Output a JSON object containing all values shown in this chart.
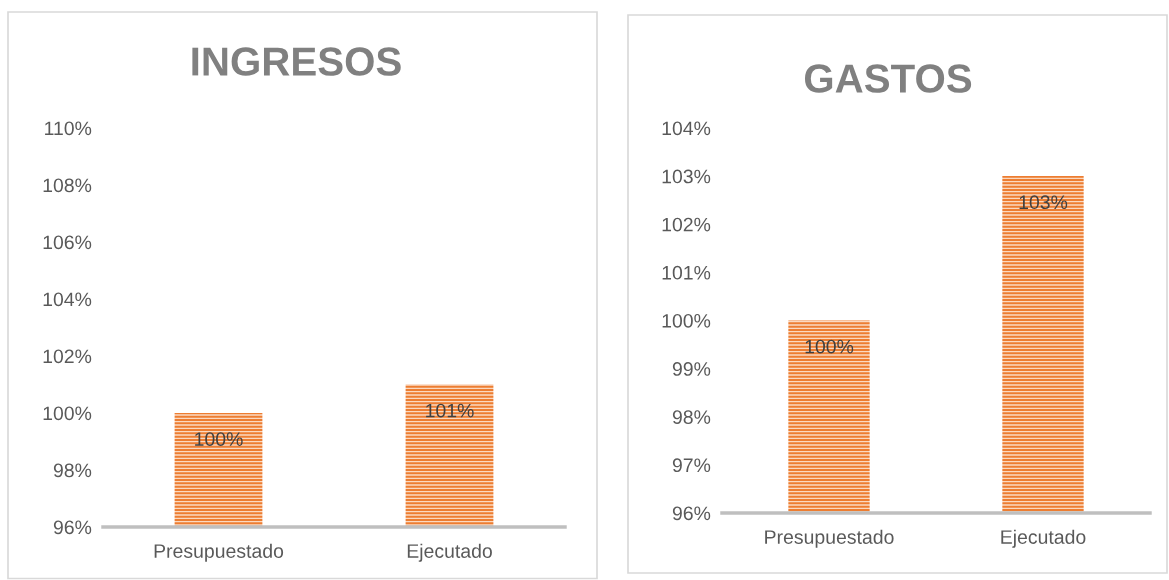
{
  "chart_data": [
    {
      "type": "bar",
      "title": "INGRESOS",
      "categories": [
        "Presupuestado",
        "Ejecutado"
      ],
      "values": [
        100,
        101
      ],
      "color": "#ed7d31",
      "value_labels": [
        "100%",
        "101%"
      ],
      "ylim": [
        96,
        110
      ],
      "yticks": [
        {
          "value": 96,
          "label": "96%"
        },
        {
          "value": 98,
          "label": "98%"
        },
        {
          "value": 100,
          "label": "100%"
        },
        {
          "value": 102,
          "label": "102%"
        },
        {
          "value": 104,
          "label": "104%"
        },
        {
          "value": 106,
          "label": "106%"
        },
        {
          "value": 108,
          "label": "108%"
        },
        {
          "value": 110,
          "label": "110%"
        }
      ]
    },
    {
      "type": "bar",
      "title": "GASTOS",
      "categories": [
        "Presupuestado",
        "Ejecutado"
      ],
      "values": [
        100,
        103
      ],
      "color": "#ed7d31",
      "value_labels": [
        "100%",
        "103%"
      ],
      "ylim": [
        96,
        104
      ],
      "yticks": [
        {
          "value": 96,
          "label": "96%"
        },
        {
          "value": 97,
          "label": "97%"
        },
        {
          "value": 98,
          "label": "98%"
        },
        {
          "value": 99,
          "label": "99%"
        },
        {
          "value": 100,
          "label": "100%"
        },
        {
          "value": 101,
          "label": "101%"
        },
        {
          "value": 102,
          "label": "102%"
        },
        {
          "value": 103,
          "label": "103%"
        },
        {
          "value": 104,
          "label": "104%"
        }
      ]
    }
  ]
}
